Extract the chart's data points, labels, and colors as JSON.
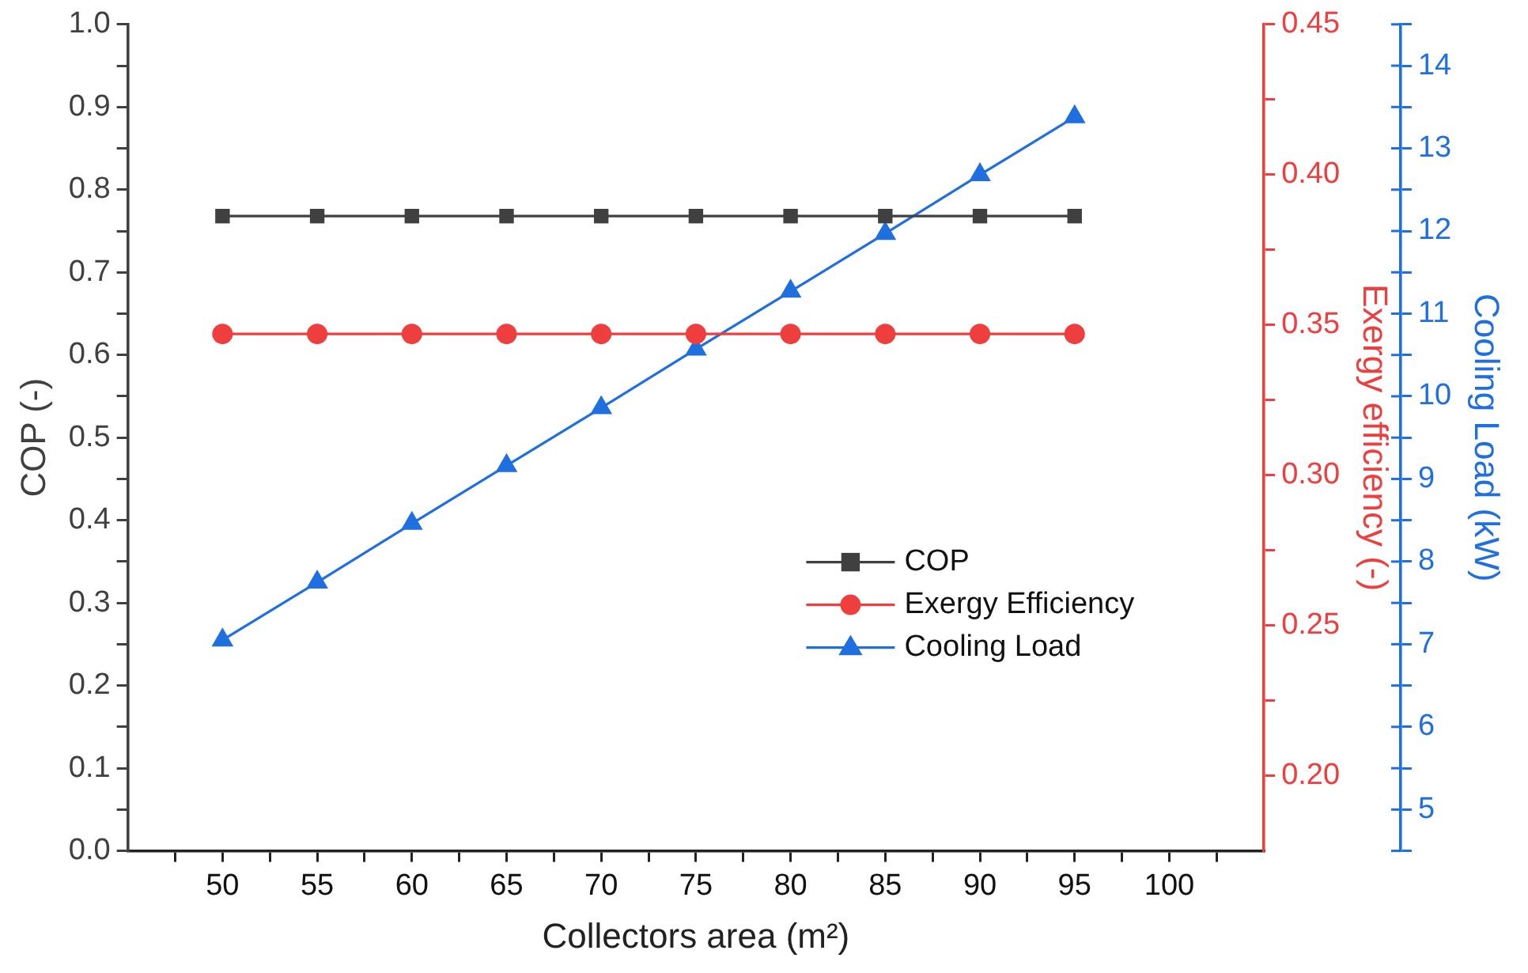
{
  "chart_data": {
    "type": "line",
    "xlabel": "Collectors area (m²)",
    "ylabel": "COP (-)",
    "y2label": "Exergy efficiency (-)",
    "y3label": "Cooling Load (kW)",
    "x": [
      50,
      55,
      60,
      65,
      70,
      75,
      80,
      85,
      90,
      95
    ],
    "series": [
      {
        "name": "COP",
        "color": "#404040",
        "marker": "square",
        "values": [
          0.768,
          0.768,
          0.768,
          0.768,
          0.768,
          0.768,
          0.768,
          0.768,
          0.768,
          0.768
        ]
      },
      {
        "name": "Exergy Efficiency",
        "color": "#ee3e3e",
        "marker": "circle",
        "axis": "y2",
        "values": [
          0.347,
          0.347,
          0.347,
          0.347,
          0.347,
          0.347,
          0.347,
          0.347,
          0.347,
          0.347
        ]
      },
      {
        "name": "Cooling Load",
        "color": "#1f6fe0",
        "marker": "triangle",
        "axis": "y3",
        "values": [
          7.05,
          7.75,
          8.46,
          9.16,
          9.86,
          10.57,
          11.27,
          11.97,
          12.68,
          13.38
        ]
      }
    ],
    "xlim": [
      45,
      105
    ],
    "xticks": [
      {
        "value": 47.5,
        "label": null
      },
      50,
      {
        "value": 52.5,
        "label": null
      },
      55,
      {
        "value": 57.5,
        "label": null
      },
      60,
      {
        "value": 62.5,
        "label": null
      },
      65,
      {
        "value": 67.5,
        "label": null
      },
      70,
      {
        "value": 72.5,
        "label": null
      },
      75,
      {
        "value": 77.5,
        "label": null
      },
      80,
      {
        "value": 82.5,
        "label": null
      },
      85,
      {
        "value": 87.5,
        "label": null
      },
      90,
      {
        "value": 92.5,
        "label": null
      },
      95,
      {
        "value": 97.5,
        "label": null
      },
      100,
      {
        "value": 102.5,
        "label": null
      }
    ],
    "ylim": [
      0,
      1
    ],
    "yticks": [
      {
        "value": 0,
        "label": "0.0"
      },
      {
        "value": 0.05,
        "label": null
      },
      0.1,
      {
        "value": 0.15,
        "label": null
      },
      0.2,
      {
        "value": 0.25,
        "label": null
      },
      0.3,
      {
        "value": 0.35,
        "label": null
      },
      0.4,
      {
        "value": 0.45,
        "label": null
      },
      0.5,
      {
        "value": 0.55,
        "label": null
      },
      0.6,
      {
        "value": 0.65,
        "label": null
      },
      0.7,
      {
        "value": 0.75,
        "label": null
      },
      0.8,
      {
        "value": 0.85,
        "label": null
      },
      0.9,
      {
        "value": 0.95,
        "label": null
      },
      {
        "value": 1,
        "label": "1.0"
      }
    ],
    "y2lim": [
      0.175,
      0.45
    ],
    "y2ticks": [
      {
        "value": 0.2,
        "label": "0.20"
      },
      {
        "value": 0.225,
        "label": null
      },
      {
        "value": 0.25,
        "label": "0.25"
      },
      {
        "value": 0.275,
        "label": null
      },
      {
        "value": 0.3,
        "label": "0.30"
      },
      {
        "value": 0.325,
        "label": null
      },
      {
        "value": 0.35,
        "label": "0.35"
      },
      {
        "value": 0.375,
        "label": null
      },
      {
        "value": 0.4,
        "label": "0.40"
      },
      {
        "value": 0.425,
        "label": null
      },
      {
        "value": 0.45,
        "label": "0.45"
      }
    ],
    "y3lim": [
      4.5,
      14.5
    ],
    "y3ticks": [
      {
        "value": 4.5,
        "label": null
      },
      5,
      {
        "value": 5.5,
        "label": null
      },
      6,
      {
        "value": 6.5,
        "label": null
      },
      7,
      {
        "value": 7.5,
        "label": null
      },
      8,
      {
        "value": 8.5,
        "label": null
      },
      9,
      {
        "value": 9.5,
        "label": null
      },
      10,
      {
        "value": 10.5,
        "label": null
      },
      11,
      {
        "value": 11.5,
        "label": null
      },
      12,
      {
        "value": 12.5,
        "label": null
      },
      13,
      {
        "value": 13.5,
        "label": null
      },
      14,
      {
        "value": 14.5,
        "label": null
      }
    ],
    "grid": false,
    "legend": "bottom right",
    "line_style": "solid"
  }
}
